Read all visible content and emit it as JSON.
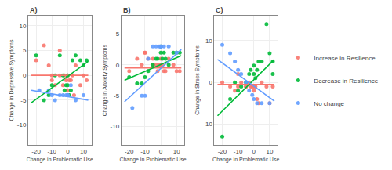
{
  "chart_data": [
    {
      "type": "scatter",
      "title": "A)",
      "xlabel": "Change in Problematic Use",
      "ylabel": "Change in Depressive Symptoms",
      "xlim": [
        -25,
        15
      ],
      "ylim": [
        -14,
        12
      ],
      "xticks": [
        -20,
        -10,
        0,
        10
      ],
      "yticks": [
        -10,
        -5,
        0,
        5,
        10
      ],
      "grid": true,
      "series": [
        {
          "name": "Increase in Resilience",
          "color": "#F8766D",
          "x": [
            -20,
            -15,
            -12,
            -10,
            -10,
            -8,
            -5,
            -5,
            -3,
            -2,
            -1,
            0,
            0,
            1,
            2,
            3,
            4,
            5,
            8,
            10,
            12
          ],
          "values": [
            3,
            6,
            2,
            -1,
            0,
            -2,
            5,
            0,
            -2,
            0,
            -1,
            -3,
            0,
            -1,
            -1,
            0,
            -4,
            2,
            -2,
            0,
            -1
          ],
          "fit_x": [
            -23,
            13
          ],
          "fit_values": [
            0.0,
            0.0
          ]
        },
        {
          "name": "Decrease in Resilience",
          "color": "#00BA38",
          "x": [
            -20,
            -15,
            -12,
            -10,
            -8,
            -5,
            -3,
            -2,
            -1,
            0,
            0,
            1,
            2,
            3,
            5,
            8,
            10,
            12
          ],
          "values": [
            4,
            -5,
            -4,
            -2,
            0,
            4,
            0,
            -3,
            -2,
            0,
            -2,
            -4,
            -3,
            3,
            4,
            3,
            2,
            3
          ],
          "fit_x": [
            -23,
            13
          ],
          "fit_values": [
            -5.5,
            2.8
          ]
        },
        {
          "name": "No change",
          "color": "#619CFF",
          "x": [
            -18,
            -12,
            -10,
            -8,
            -5,
            -3,
            -1,
            0,
            0,
            2,
            5,
            10
          ],
          "values": [
            -3,
            -3,
            -4,
            -5,
            -4,
            -4,
            -4,
            -4,
            -4,
            -2,
            -5,
            -4
          ],
          "fit_x": [
            -23,
            13
          ],
          "fit_values": [
            -3.0,
            -5.0
          ]
        }
      ]
    },
    {
      "type": "scatter",
      "title": "B)",
      "xlabel": "Change in Problematic Use",
      "ylabel": "Change in Anxiety Symptoms",
      "xlim": [
        -25,
        15
      ],
      "ylim": [
        -13,
        8
      ],
      "xticks": [
        -20,
        -10,
        0,
        10
      ],
      "yticks": [
        -10,
        -5,
        0,
        5
      ],
      "grid": true,
      "series": [
        {
          "name": "Increase in Resilience",
          "color": "#F8766D",
          "x": [
            -20,
            -15,
            -12,
            -10,
            -10,
            -8,
            -5,
            -5,
            -3,
            -2,
            -1,
            0,
            0,
            1,
            2,
            3,
            5,
            8,
            10,
            12
          ],
          "values": [
            -1,
            1,
            0,
            2,
            2,
            1,
            0,
            1,
            0,
            -1,
            0,
            0,
            1,
            0,
            -1,
            -1,
            1,
            0,
            -1,
            -1
          ],
          "fit_x": [
            -23,
            13
          ],
          "fit_values": [
            -0.5,
            -0.5
          ]
        },
        {
          "name": "Decrease in Resilience",
          "color": "#00BA38",
          "x": [
            -20,
            -15,
            -12,
            -10,
            -8,
            -5,
            -3,
            -2,
            0,
            0,
            1,
            2,
            3,
            5,
            8,
            10,
            12
          ],
          "values": [
            -2,
            -3,
            -3,
            -2,
            -1,
            0,
            1,
            1,
            2,
            3,
            1,
            2,
            1,
            0,
            2,
            2,
            2
          ],
          "fit_x": [
            -23,
            13
          ],
          "fit_values": [
            -2.5,
            1.5
          ]
        },
        {
          "name": "No change",
          "color": "#619CFF",
          "x": [
            -18,
            -12,
            -10,
            -8,
            -5,
            -3,
            -1,
            0,
            0,
            2,
            5,
            10
          ],
          "values": [
            -7,
            -5,
            -5,
            1,
            3,
            3,
            3,
            3,
            3,
            3,
            3,
            2
          ],
          "fit_x": [
            -23,
            13
          ],
          "fit_values": [
            -6.0,
            2.5
          ]
        }
      ]
    },
    {
      "type": "scatter",
      "title": "C)",
      "xlabel": "Change in Problematic Use",
      "ylabel": "Change in Stress Symptoms",
      "xlim": [
        -25,
        15
      ],
      "ylim": [
        -15,
        16
      ],
      "xticks": [
        -20,
        -10,
        0,
        10
      ],
      "yticks": [
        -10,
        0,
        10
      ],
      "grid": true,
      "legend": "right",
      "series": [
        {
          "name": "Increase in Resilience",
          "color": "#F8766D",
          "x": [
            -20,
            -15,
            -12,
            -10,
            -10,
            -8,
            -5,
            -5,
            -3,
            -2,
            -1,
            0,
            0,
            1,
            2,
            3,
            5,
            8,
            10,
            12
          ],
          "values": [
            0,
            -1,
            -2,
            2,
            -1,
            0,
            -1,
            -1,
            0,
            -1,
            -1,
            -1,
            -2,
            -1,
            -4,
            -5,
            0,
            -1,
            -5,
            -1
          ],
          "fit_x": [
            -23,
            13
          ],
          "fit_values": [
            -0.5,
            -0.5
          ]
        },
        {
          "name": "Decrease in Resilience",
          "color": "#00BA38",
          "x": [
            -20,
            -15,
            -12,
            -10,
            -8,
            -5,
            -3,
            -2,
            0,
            0,
            1,
            2,
            3,
            5,
            8,
            10,
            12,
            12
          ],
          "values": [
            -13,
            -4,
            0,
            -2,
            -1,
            0,
            2,
            3,
            2,
            4,
            1,
            3,
            5,
            5,
            14,
            7,
            5,
            2
          ],
          "fit_x": [
            -23,
            13
          ],
          "fit_values": [
            -8.0,
            5.5
          ]
        },
        {
          "name": "No change",
          "color": "#619CFF",
          "x": [
            -20,
            -15,
            -12,
            -10,
            -8,
            -5,
            -3,
            -1,
            0,
            2,
            5,
            10
          ],
          "values": [
            9,
            7,
            5,
            3,
            2,
            0,
            -2,
            -3,
            -4,
            -5,
            -5,
            -5
          ],
          "fit_x": [
            -23,
            13
          ],
          "fit_values": [
            5.5,
            -4.5
          ]
        }
      ]
    }
  ]
}
